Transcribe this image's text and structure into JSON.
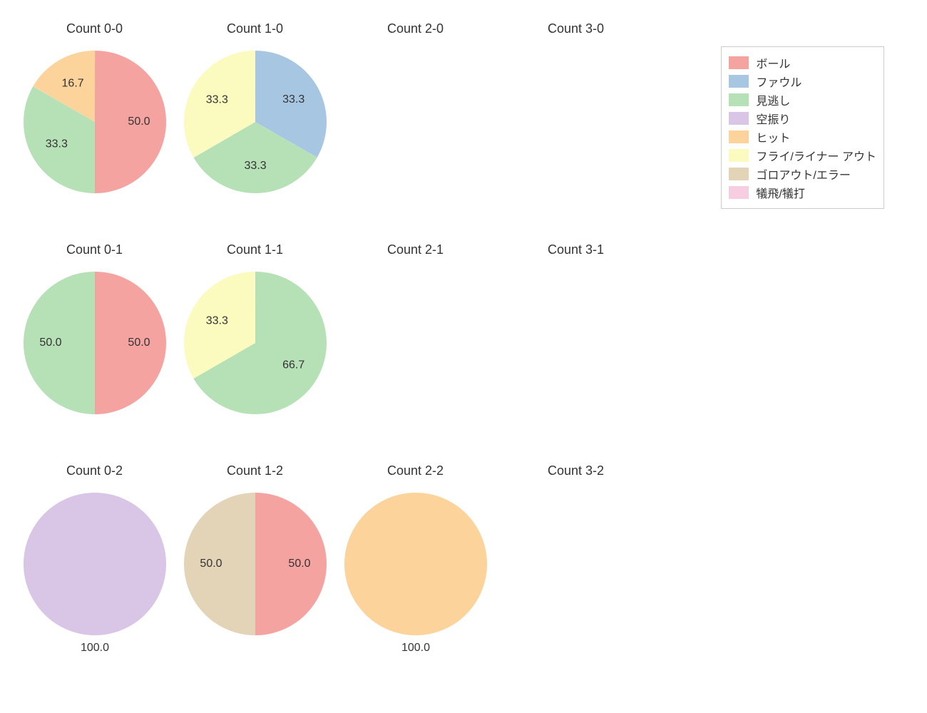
{
  "chart": {
    "type": "pie-grid",
    "rows": 3,
    "cols": 4,
    "background_color": "#ffffff",
    "title_fontsize": 18,
    "label_fontsize": 16,
    "label_color": "#333333",
    "pie_radius": 100,
    "categories": {
      "ball": {
        "label": "ボール",
        "color": "#f4a3a0",
        "alt_color": "#ed9693"
      },
      "foul": {
        "label": "ファウル",
        "color": "#a6c6e1"
      },
      "miss": {
        "label": "見逃し",
        "color": "#b6e0b6"
      },
      "swing": {
        "label": "空振り",
        "color": "#d9c6e6"
      },
      "hit": {
        "label": "ヒット",
        "color": "#fcd39b"
      },
      "flyout": {
        "label": "フライ/ライナー アウト",
        "color": "#fbfbbf"
      },
      "groundout": {
        "label": "ゴロアウト/エラー",
        "color": "#e3d4b8"
      },
      "sac": {
        "label": "犠飛/犠打",
        "color": "#f7cde2"
      }
    },
    "legend": {
      "order": [
        "ball",
        "foul",
        "miss",
        "swing",
        "hit",
        "flyout",
        "groundout",
        "sac"
      ],
      "border_color": "#cccccc"
    },
    "cells": [
      {
        "row": 0,
        "col": 0,
        "title": "Count 0-0",
        "slices": [
          {
            "cat": "ball",
            "value": 50.0,
            "label": "50.0",
            "start": 0
          },
          {
            "cat": "miss",
            "value": 33.3,
            "label": "33.3",
            "start": 180
          },
          {
            "cat": "hit",
            "value": 16.7,
            "label": "16.7",
            "start": 300
          }
        ]
      },
      {
        "row": 0,
        "col": 1,
        "title": "Count 1-0",
        "slices": [
          {
            "cat": "foul",
            "value": 33.3,
            "label": "33.3",
            "start": 0
          },
          {
            "cat": "miss",
            "value": 33.3,
            "label": "33.3",
            "start": 120
          },
          {
            "cat": "flyout",
            "value": 33.3,
            "label": "33.3",
            "start": 240
          }
        ]
      },
      {
        "row": 0,
        "col": 2,
        "title": "Count 2-0",
        "slices": []
      },
      {
        "row": 0,
        "col": 3,
        "title": "Count 3-0",
        "slices": []
      },
      {
        "row": 1,
        "col": 0,
        "title": "Count 0-1",
        "slices": [
          {
            "cat": "ball",
            "value": 50.0,
            "label": "50.0",
            "start": 0
          },
          {
            "cat": "miss",
            "value": 50.0,
            "label": "50.0",
            "start": 180
          }
        ]
      },
      {
        "row": 1,
        "col": 1,
        "title": "Count 1-1",
        "slices": [
          {
            "cat": "miss",
            "value": 66.7,
            "label": "66.7",
            "start": 0
          },
          {
            "cat": "flyout",
            "value": 33.3,
            "label": "33.3",
            "start": 240
          }
        ]
      },
      {
        "row": 1,
        "col": 2,
        "title": "Count 2-1",
        "slices": []
      },
      {
        "row": 1,
        "col": 3,
        "title": "Count 3-1",
        "slices": []
      },
      {
        "row": 2,
        "col": 0,
        "title": "Count 0-2",
        "slices": [
          {
            "cat": "swing",
            "value": 100.0,
            "label": "100.0",
            "start": 0,
            "label_pos": "bottom"
          }
        ]
      },
      {
        "row": 2,
        "col": 1,
        "title": "Count 1-2",
        "slices": [
          {
            "cat": "ball",
            "value": 50.0,
            "label": "50.0",
            "start": 0
          },
          {
            "cat": "groundout",
            "value": 50.0,
            "label": "50.0",
            "start": 180
          }
        ]
      },
      {
        "row": 2,
        "col": 2,
        "title": "Count 2-2",
        "slices": [
          {
            "cat": "hit",
            "value": 100.0,
            "label": "100.0",
            "start": 0,
            "label_pos": "bottom"
          }
        ]
      },
      {
        "row": 2,
        "col": 3,
        "title": "Count 3-2",
        "slices": []
      }
    ]
  }
}
